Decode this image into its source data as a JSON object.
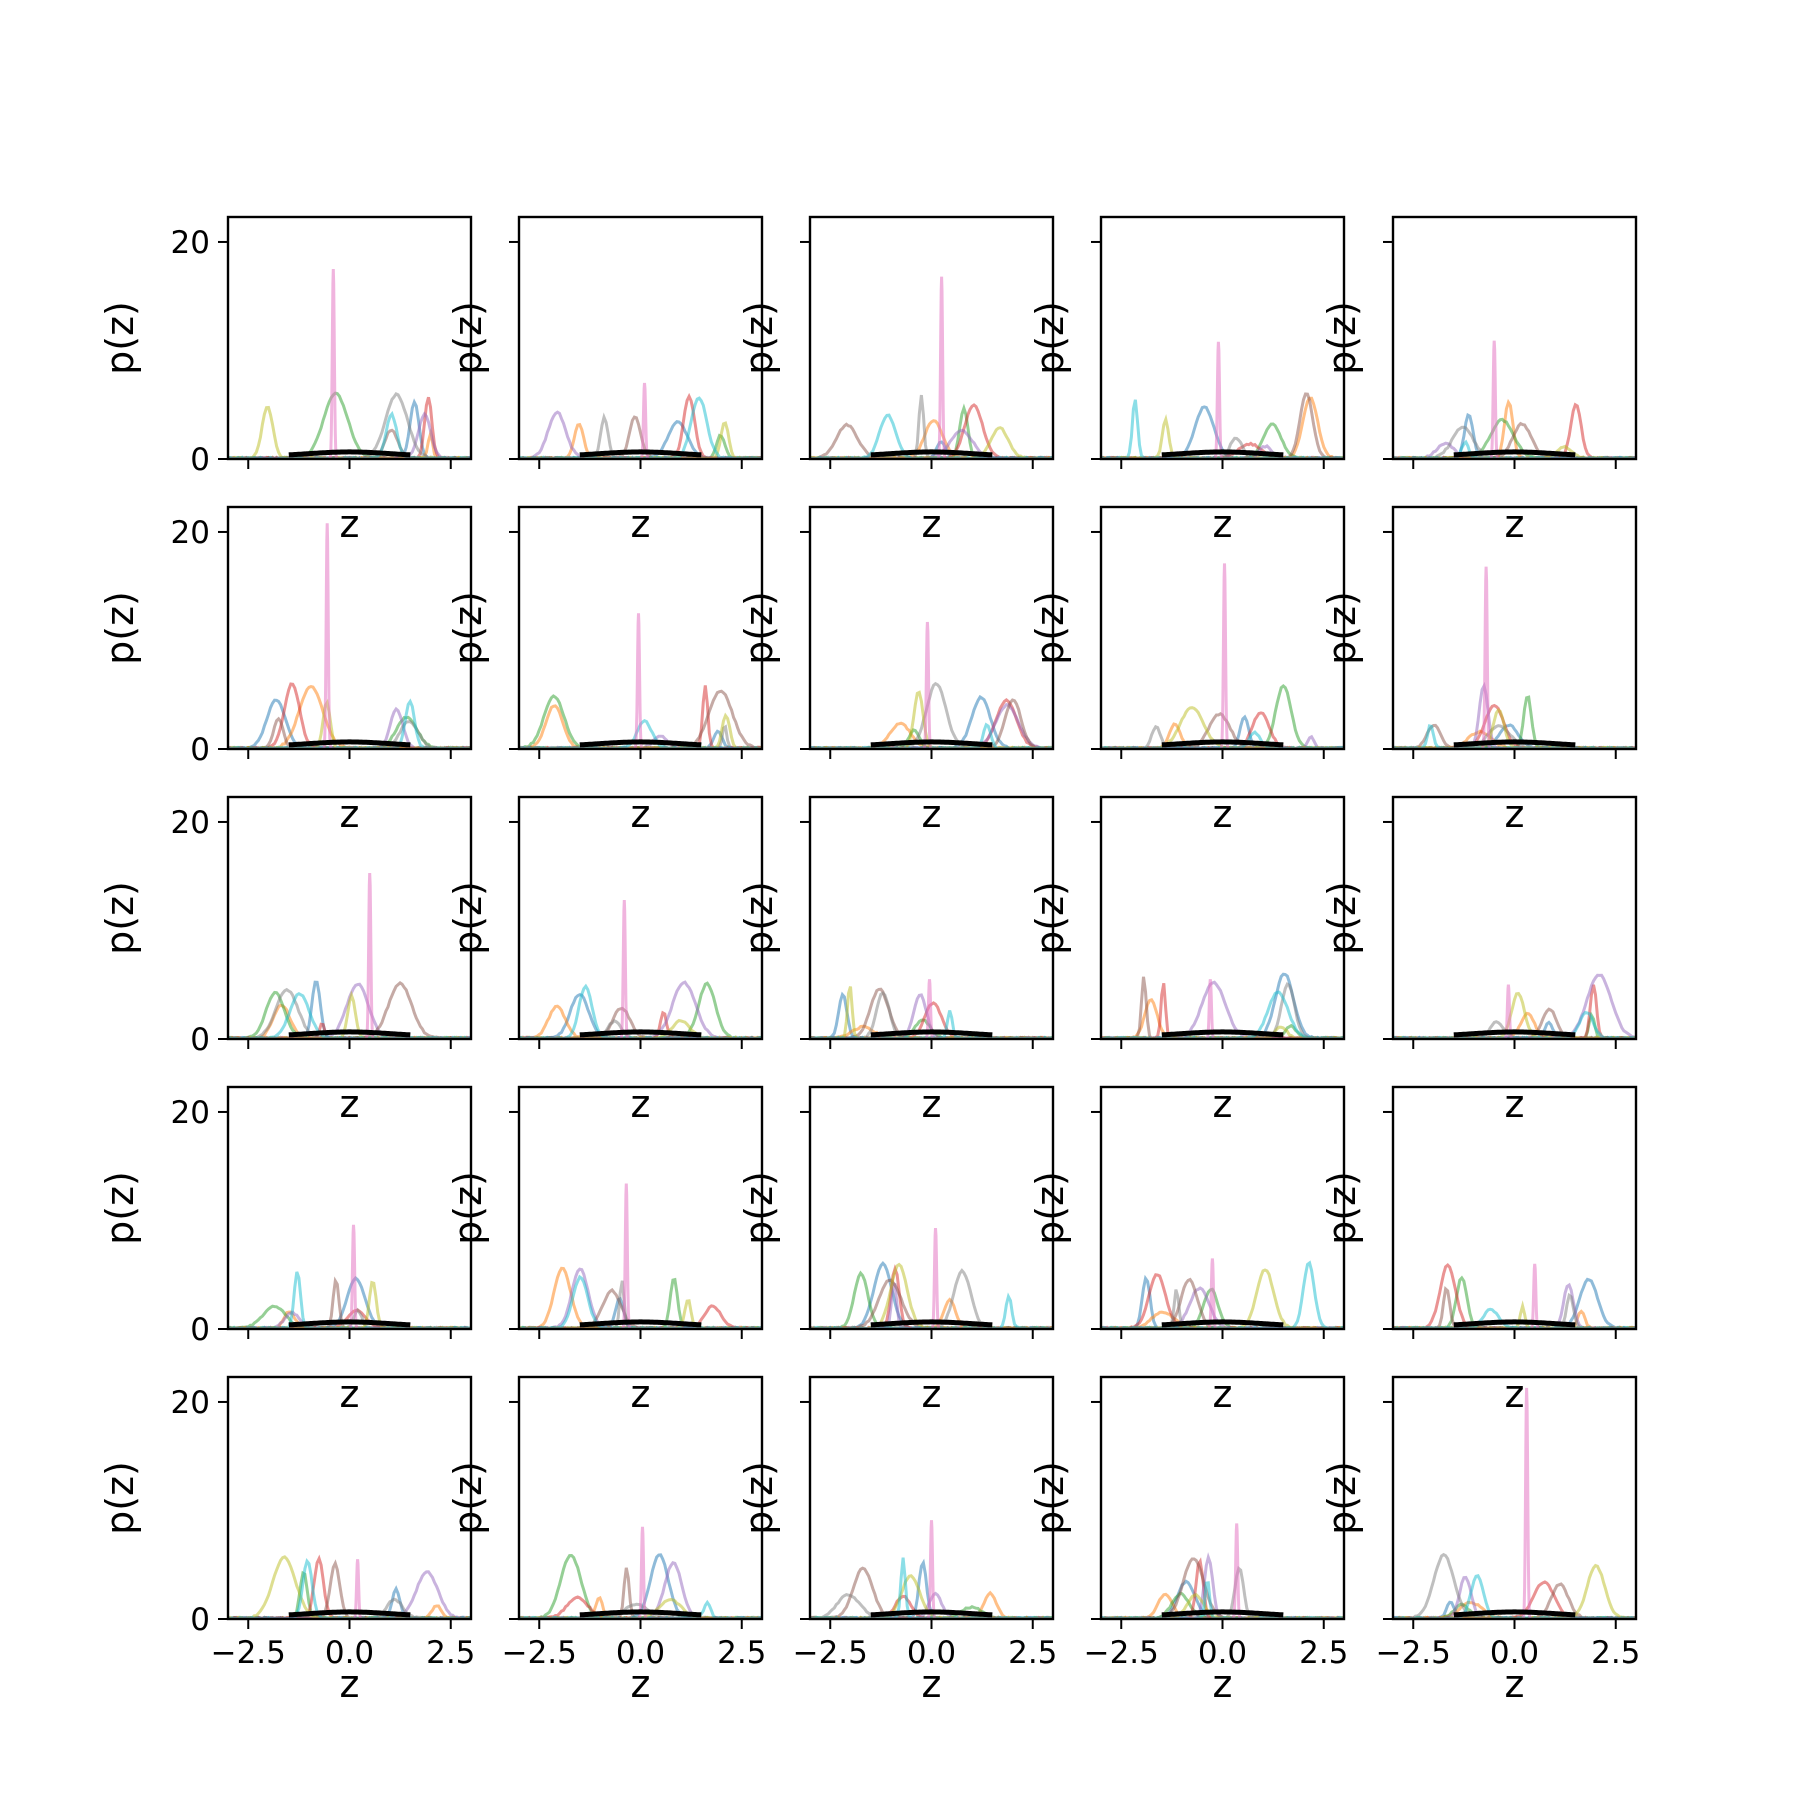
{
  "chart_data": {
    "type": "line",
    "layout": "5x5 grid of subplots",
    "xlabel": "z",
    "ylabel": "p(z)",
    "xlim": [
      -3,
      3
    ],
    "ylim": [
      0,
      22.3
    ],
    "xticks": [
      -2.5,
      0.0,
      2.5
    ],
    "xtick_labels": [
      "−2.5",
      "0.0",
      "2.5"
    ],
    "yticks": [
      0,
      20
    ],
    "ytick_labels": [
      "0",
      "20"
    ],
    "grid": false,
    "legend": "none",
    "series_colors": [
      "#1f77b4",
      "#ff7f0e",
      "#2ca02c",
      "#d62728",
      "#9467bd",
      "#8c564b",
      "#e377c2",
      "#7f7f7f",
      "#bcbd22",
      "#17becf"
    ],
    "prior_color": "#000000",
    "subplots": [
      {
        "row": 0,
        "col": 0,
        "pink_peak_x": -0.4,
        "pink_peak_y": 17.5
      },
      {
        "row": 0,
        "col": 1,
        "pink_peak_x": 0.1,
        "pink_peak_y": 7.0
      },
      {
        "row": 0,
        "col": 2,
        "pink_peak_x": 0.25,
        "pink_peak_y": 16.8
      },
      {
        "row": 0,
        "col": 3,
        "pink_peak_x": -0.1,
        "pink_peak_y": 10.8
      },
      {
        "row": 0,
        "col": 4,
        "pink_peak_x": -0.5,
        "pink_peak_y": 10.9
      },
      {
        "row": 1,
        "col": 0,
        "pink_peak_x": -0.55,
        "pink_peak_y": 20.8
      },
      {
        "row": 1,
        "col": 1,
        "pink_peak_x": -0.05,
        "pink_peak_y": 12.5
      },
      {
        "row": 1,
        "col": 2,
        "pink_peak_x": -0.1,
        "pink_peak_y": 11.7
      },
      {
        "row": 1,
        "col": 3,
        "pink_peak_x": 0.05,
        "pink_peak_y": 17.1
      },
      {
        "row": 1,
        "col": 4,
        "pink_peak_x": -0.7,
        "pink_peak_y": 16.8
      },
      {
        "row": 2,
        "col": 0,
        "pink_peak_x": 0.5,
        "pink_peak_y": 15.3
      },
      {
        "row": 2,
        "col": 1,
        "pink_peak_x": -0.4,
        "pink_peak_y": 12.8
      },
      {
        "row": 2,
        "col": 2,
        "pink_peak_x": -0.05,
        "pink_peak_y": 5.5
      },
      {
        "row": 2,
        "col": 3,
        "pink_peak_x": -0.3,
        "pink_peak_y": 5.5
      },
      {
        "row": 2,
        "col": 4,
        "pink_peak_x": -0.15,
        "pink_peak_y": 5.0
      },
      {
        "row": 3,
        "col": 0,
        "pink_peak_x": 0.1,
        "pink_peak_y": 9.6
      },
      {
        "row": 3,
        "col": 1,
        "pink_peak_x": -0.35,
        "pink_peak_y": 13.4
      },
      {
        "row": 3,
        "col": 2,
        "pink_peak_x": 0.1,
        "pink_peak_y": 9.3
      },
      {
        "row": 3,
        "col": 3,
        "pink_peak_x": -0.25,
        "pink_peak_y": 6.5
      },
      {
        "row": 3,
        "col": 4,
        "pink_peak_x": 0.5,
        "pink_peak_y": 6.0
      },
      {
        "row": 4,
        "col": 0,
        "pink_peak_x": 0.2,
        "pink_peak_y": 5.5
      },
      {
        "row": 4,
        "col": 1,
        "pink_peak_x": 0.05,
        "pink_peak_y": 8.5
      },
      {
        "row": 4,
        "col": 2,
        "pink_peak_x": 0.0,
        "pink_peak_y": 9.1
      },
      {
        "row": 4,
        "col": 3,
        "pink_peak_x": 0.35,
        "pink_peak_y": 8.8
      },
      {
        "row": 4,
        "col": 4,
        "pink_peak_x": 0.3,
        "pink_peak_y": 21.3
      }
    ]
  }
}
